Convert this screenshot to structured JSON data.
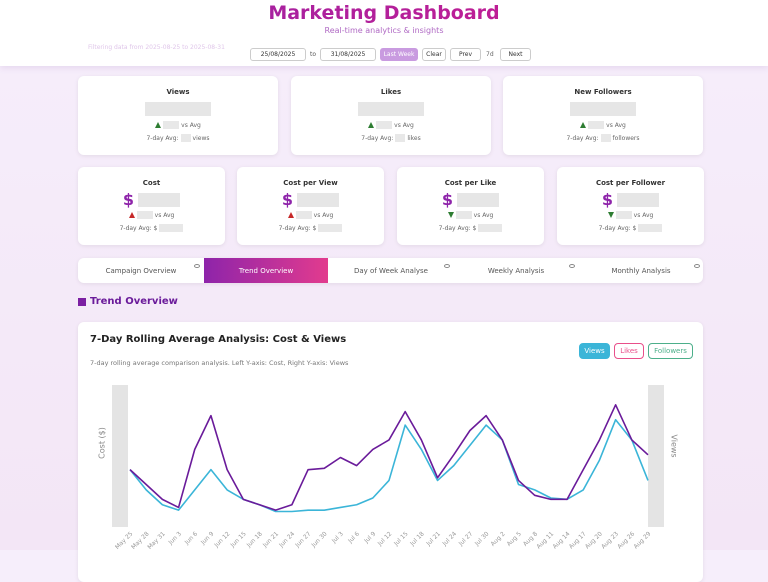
{
  "header": {
    "title": "Marketing Dashboard",
    "subtitle": "Real-time analytics & insights"
  },
  "filters": {
    "status": "Filtering data from 2025-08-25 to 2025-08-31",
    "start_date": "25/08/2025",
    "separator": "to",
    "end_date": "31/08/2025",
    "last_week": "Last Week",
    "clear": "Clear",
    "prev": "Prev",
    "range": "7d",
    "next": "Next"
  },
  "kpis_top": [
    {
      "title": "Views",
      "comparison": "vs Avg",
      "avg_label": "7-day Avg:",
      "avg_unit": "views",
      "trend": "up",
      "trend_color": "#2e7d32"
    },
    {
      "title": "Likes",
      "comparison": "vs Avg",
      "avg_label": "7-day Avg:",
      "avg_unit": "likes",
      "trend": "up",
      "trend_color": "#2e7d32"
    },
    {
      "title": "New Followers",
      "comparison": "vs Avg",
      "avg_label": "7-day Avg:",
      "avg_unit": "followers",
      "trend": "up",
      "trend_color": "#2e7d32"
    }
  ],
  "kpis_cost": [
    {
      "title": "Cost",
      "currency": "$",
      "comparison": "vs Avg",
      "avg_label": "7-day Avg: $",
      "trend": "up",
      "trend_color": "#c62828"
    },
    {
      "title": "Cost per View",
      "currency": "$",
      "comparison": "vs Avg",
      "avg_label": "7-day Avg: $",
      "trend": "up",
      "trend_color": "#c62828"
    },
    {
      "title": "Cost per Like",
      "currency": "$",
      "comparison": "vs Avg",
      "avg_label": "7-day Avg: $",
      "trend": "down",
      "trend_color": "#2e7d32"
    },
    {
      "title": "Cost per Follower",
      "currency": "$",
      "comparison": "vs Avg",
      "avg_label": "7-day Avg: $",
      "trend": "down",
      "trend_color": "#2e7d32"
    }
  ],
  "tabs": {
    "items": [
      "Campaign Overview",
      "Trend Overview",
      "Day of Week Analyse",
      "Weekly Analysis",
      "Monthly Analysis"
    ],
    "active": 1
  },
  "section_title": "Trend Overview",
  "chart_data": {
    "type": "line",
    "title": "7-Day Rolling Average Analysis: Cost & Views",
    "subtitle": "7-day rolling average comparison analysis. Left Y-axis: Cost, Right Y-axis: Views",
    "toggles": [
      {
        "label": "Views",
        "color": "#3bb5d8",
        "active": true
      },
      {
        "label": "Likes",
        "color": "#e94f8a",
        "active": false
      },
      {
        "label": "Followers",
        "color": "#4caf8a",
        "active": false
      }
    ],
    "categories": [
      "May 25",
      "May 28",
      "May 31",
      "Jun 3",
      "Jun 6",
      "Jun 9",
      "Jun 12",
      "Jun 15",
      "Jun 18",
      "Jun 21",
      "Jun 24",
      "Jun 27",
      "Jun 30",
      "Jul 3",
      "Jul 6",
      "Jul 9",
      "Jul 12",
      "Jul 15",
      "Jul 18",
      "Jul 21",
      "Jul 24",
      "Jul 27",
      "Jul 30",
      "Aug 2",
      "Aug 5",
      "Aug 8",
      "Aug 11",
      "Aug 14",
      "Aug 17",
      "Aug 20",
      "Aug 23",
      "Aug 26",
      "Aug 29"
    ],
    "ylim": [
      0,
      100
    ],
    "y2lim": [
      0,
      100
    ],
    "series": [
      {
        "name": "Cost ($)",
        "color": "#6a1b9a",
        "values": [
          41,
          30,
          19,
          13,
          56,
          81,
          41,
          19,
          15,
          11,
          15,
          41,
          42,
          50,
          44,
          56,
          63,
          84,
          63,
          35,
          52,
          70,
          81,
          63,
          33,
          22,
          19,
          19,
          41,
          63,
          89,
          63,
          52
        ]
      },
      {
        "name": "Views",
        "color": "#3bb5d8",
        "axis": "y2",
        "values": [
          41,
          26,
          15,
          11,
          26,
          41,
          26,
          19,
          15,
          10,
          10,
          11,
          11,
          13,
          15,
          20,
          33,
          74,
          56,
          33,
          44,
          59,
          74,
          63,
          30,
          26,
          20,
          19,
          26,
          48,
          78,
          63,
          33
        ]
      }
    ]
  }
}
